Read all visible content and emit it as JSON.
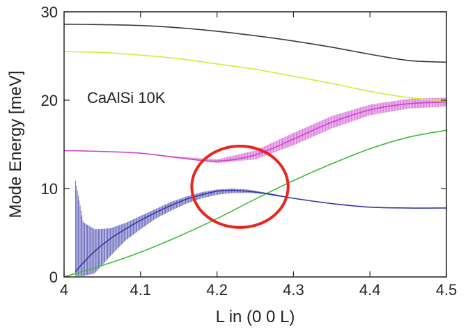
{
  "chart_data": {
    "type": "line",
    "title": "",
    "xlabel": "L in (0 0 L)",
    "ylabel": "Mode Energy  [meV]",
    "xlim": [
      4.0,
      4.5
    ],
    "ylim": [
      0,
      30
    ],
    "x_ticks": [
      4.0,
      4.1,
      4.2,
      4.3,
      4.4,
      4.5
    ],
    "x_tick_labels": [
      "4",
      "4.1",
      "4.2",
      "4.3",
      "4.4",
      "4.5"
    ],
    "y_ticks": [
      0,
      10,
      20,
      30
    ],
    "y_tick_labels": [
      "0",
      "10",
      "20",
      "30"
    ],
    "grid": false,
    "legend": "none",
    "annotation_text": "CaAlSi  10K",
    "annotation_pos": [
      4.03,
      19.7
    ],
    "highlight_circle": {
      "cx": 4.23,
      "cy": 10.2,
      "rx": 0.063,
      "ry": 4.6,
      "color": "#e8241c"
    },
    "series": [
      {
        "color": "#3a3a3a",
        "x": [
          4.0,
          4.05,
          4.1,
          4.15,
          4.2,
          4.25,
          4.3,
          4.35,
          4.4,
          4.45,
          4.5
        ],
        "y": [
          28.6,
          28.55,
          28.45,
          28.2,
          27.8,
          27.3,
          26.7,
          26.0,
          25.2,
          24.5,
          24.3
        ]
      },
      {
        "color": "#d8e83c",
        "x": [
          4.0,
          4.05,
          4.1,
          4.15,
          4.2,
          4.25,
          4.3,
          4.35,
          4.4,
          4.45,
          4.5
        ],
        "y": [
          25.5,
          25.4,
          25.1,
          24.7,
          24.1,
          23.5,
          22.7,
          21.9,
          21.0,
          20.3,
          19.9
        ]
      },
      {
        "color": "#cc44cc",
        "x": [
          4.0,
          4.05,
          4.1,
          4.15,
          4.2,
          4.25,
          4.3,
          4.35,
          4.4,
          4.45,
          4.5
        ],
        "y": [
          14.3,
          14.2,
          14.0,
          13.5,
          13.1,
          13.8,
          15.6,
          17.5,
          18.9,
          19.6,
          19.8
        ],
        "band": [
          0,
          0,
          0,
          0.1,
          0.2,
          0.5,
          0.7,
          0.7,
          0.6,
          0.55,
          0.5
        ]
      },
      {
        "color": "#3cbc3c",
        "x": [
          4.0,
          4.05,
          4.1,
          4.15,
          4.2,
          4.25,
          4.3,
          4.35,
          4.4,
          4.45,
          4.5
        ],
        "y": [
          0.0,
          1.3,
          2.8,
          4.6,
          6.6,
          8.8,
          10.9,
          12.8,
          14.5,
          15.8,
          16.6
        ]
      },
      {
        "color": "#3535a8",
        "x": [
          4.015,
          4.025,
          4.04,
          4.06,
          4.08,
          4.1,
          4.12,
          4.14,
          4.16,
          4.18,
          4.2,
          4.22,
          4.24,
          4.26,
          4.28,
          4.3,
          4.35,
          4.4,
          4.45,
          4.5
        ],
        "y": [
          0.6,
          1.6,
          2.9,
          4.3,
          5.4,
          6.4,
          7.3,
          8.1,
          8.8,
          9.3,
          9.7,
          9.8,
          9.7,
          9.5,
          9.2,
          8.9,
          8.3,
          7.9,
          7.8,
          7.8
        ],
        "band_low": [
          0.1,
          0.1,
          0.4,
          2.3,
          4.1,
          5.4,
          6.6,
          7.5,
          8.3,
          8.9,
          9.3,
          9.5,
          9.5,
          9.4,
          9.1,
          8.9,
          8.3,
          7.9,
          7.8,
          7.8
        ],
        "band_high": [
          10.9,
          6.2,
          5.4,
          5.5,
          6.1,
          6.9,
          7.7,
          8.5,
          9.1,
          9.6,
          9.9,
          10.0,
          9.9,
          9.6,
          9.3,
          8.9,
          8.3,
          7.9,
          7.8,
          7.8
        ]
      }
    ]
  }
}
